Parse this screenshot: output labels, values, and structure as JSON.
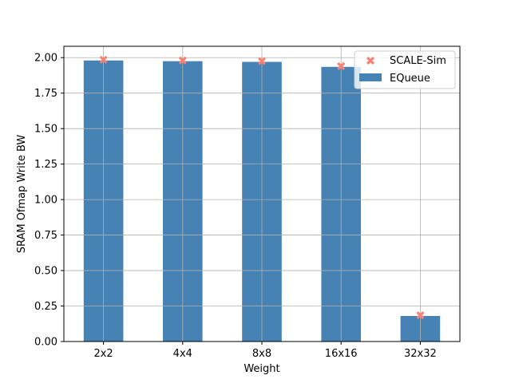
{
  "chart_data": {
    "type": "bar",
    "categories": [
      "2x2",
      "4x4",
      "8x8",
      "16x16",
      "32x32"
    ],
    "series": [
      {
        "name": "EQueue",
        "kind": "bar",
        "color": "#4682b4",
        "values": [
          1.98,
          1.975,
          1.97,
          1.935,
          0.18
        ]
      },
      {
        "name": "SCALE-Sim",
        "kind": "marker",
        "marker": "x",
        "color": "#fa8072",
        "values": [
          1.985,
          1.98,
          1.975,
          1.94,
          0.185
        ]
      }
    ],
    "xlabel": "Weight",
    "ylabel": "SRAM Ofmap Write BW",
    "ylim": [
      0,
      2.08
    ],
    "yticks": [
      0.0,
      0.25,
      0.5,
      0.75,
      1.0,
      1.25,
      1.5,
      1.75,
      2.0
    ],
    "ytick_labels": [
      "0.00",
      "0.25",
      "0.50",
      "0.75",
      "1.00",
      "1.25",
      "1.50",
      "1.75",
      "2.00"
    ],
    "grid": true,
    "legend_position": "top-right",
    "legend": [
      {
        "label": "SCALE-Sim",
        "symbol": "x-marker"
      },
      {
        "label": "EQueue",
        "symbol": "bar-patch"
      }
    ]
  }
}
